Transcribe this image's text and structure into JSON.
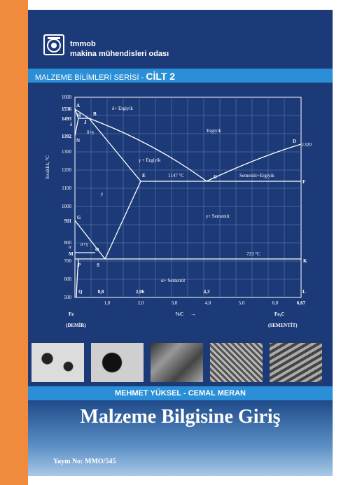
{
  "org": {
    "line1": "tmmob",
    "line2": "makina mühendisleri odası"
  },
  "series": {
    "label": "MALZEME BİLİMLERİ SERİSİ - ",
    "volume": "CİLT 2"
  },
  "diagram": {
    "y_ticks": [
      "1600",
      "1536",
      "1493",
      "1392",
      "1300",
      "1200",
      "1100",
      "1000",
      "911",
      "800",
      "700",
      "600",
      "500"
    ],
    "x_ticks": [
      "1,0",
      "2,0",
      "3,0",
      "4,0",
      "5,0",
      "6,0"
    ],
    "x_marks": [
      "0,8",
      "2,06",
      "4,3",
      "6,67"
    ],
    "ylabel": "Sıcaklık, °C",
    "xlabel": "%C",
    "left_label": "Fe",
    "left_sub": "(DEMİR)",
    "right_label": "Fe₃C",
    "right_sub": "(SEMENTİT)",
    "points": [
      "A",
      "H",
      "B",
      "J",
      "N",
      "E",
      "C",
      "D",
      "F",
      "G",
      "O",
      "M",
      "P",
      "S",
      "K",
      "Q",
      "L"
    ],
    "regions": [
      "δ+ Ergiyik",
      "Ergiyik",
      "γ + Ergiyik",
      "Sementit+Ergiyik",
      "γ+ Sementit",
      "α+ Sementit",
      "δ+γ",
      "α+γ",
      "γ"
    ],
    "temps": {
      "eutectic": "1147 °C",
      "eutectoid": "723 °C",
      "right_top": "1320"
    },
    "small_letters": [
      "δ",
      "α"
    ]
  },
  "authors": "MEHMET YÜKSEL - CEMAL MERAN",
  "title": "Malzeme Bilgisine Giriş",
  "publication": "Yayın No:  MMO/545",
  "colors": {
    "orange": "#f08a3c",
    "navy": "#1c3a78",
    "accent_blue": "#2a8fd6"
  }
}
